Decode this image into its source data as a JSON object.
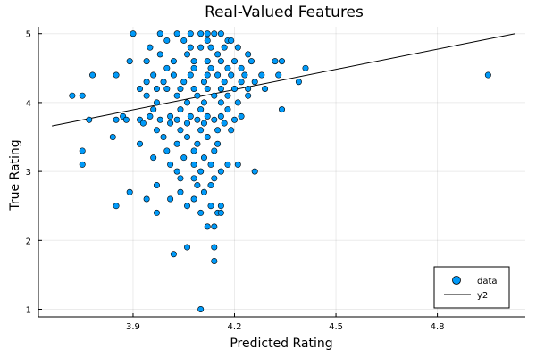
{
  "chart_data": {
    "type": "scatter",
    "title": "Real-Valued Features",
    "xlabel": "Predicted Rating",
    "ylabel": "True Rating",
    "xlim": [
      3.62,
      5.06
    ],
    "ylim": [
      0.89,
      5.1
    ],
    "x_ticks": [
      3.9,
      4.2,
      4.5,
      4.8
    ],
    "x_tick_labels": [
      "3.9",
      "4.2",
      "4.5",
      "4.8"
    ],
    "y_ticks": [
      1,
      2,
      3,
      4,
      5
    ],
    "y_tick_labels": [
      "1",
      "2",
      "3",
      "4",
      "5"
    ],
    "grid": true,
    "legend_position": "bottom-right",
    "colors": {
      "data": "#009AF9",
      "y2": "#000000"
    },
    "series": [
      {
        "name": "data",
        "type": "scatter",
        "points": [
          [
            3.9,
            5.0
          ],
          [
            3.98,
            5.0
          ],
          [
            4.03,
            5.0
          ],
          [
            4.07,
            5.0
          ],
          [
            4.1,
            5.0
          ],
          [
            4.12,
            5.0
          ],
          [
            4.14,
            5.0
          ],
          [
            4.16,
            5.0
          ],
          [
            4.18,
            4.9
          ],
          [
            4.05,
            4.9
          ],
          [
            4.0,
            4.9
          ],
          [
            4.12,
            4.9
          ],
          [
            4.19,
            4.9
          ],
          [
            4.07,
            4.8
          ],
          [
            4.1,
            4.8
          ],
          [
            4.13,
            4.8
          ],
          [
            4.17,
            4.8
          ],
          [
            4.21,
            4.8
          ],
          [
            3.95,
            4.8
          ],
          [
            3.98,
            4.7
          ],
          [
            4.06,
            4.7
          ],
          [
            4.15,
            4.7
          ],
          [
            4.24,
            4.7
          ],
          [
            3.89,
            4.6
          ],
          [
            3.94,
            4.6
          ],
          [
            4.02,
            4.6
          ],
          [
            4.08,
            4.6
          ],
          [
            4.12,
            4.6
          ],
          [
            4.16,
            4.6
          ],
          [
            4.2,
            4.6
          ],
          [
            4.25,
            4.6
          ],
          [
            4.32,
            4.6
          ],
          [
            4.34,
            4.6
          ],
          [
            4.0,
            4.5
          ],
          [
            4.08,
            4.5
          ],
          [
            4.13,
            4.5
          ],
          [
            4.18,
            4.5
          ],
          [
            4.22,
            4.5
          ],
          [
            4.41,
            4.5
          ],
          [
            3.78,
            4.4
          ],
          [
            3.85,
            4.4
          ],
          [
            3.96,
            4.4
          ],
          [
            4.02,
            4.4
          ],
          [
            4.07,
            4.4
          ],
          [
            4.12,
            4.4
          ],
          [
            4.15,
            4.4
          ],
          [
            4.19,
            4.4
          ],
          [
            4.23,
            4.4
          ],
          [
            4.28,
            4.4
          ],
          [
            4.33,
            4.4
          ],
          [
            4.95,
            4.4
          ],
          [
            3.94,
            4.3
          ],
          [
            3.99,
            4.3
          ],
          [
            4.05,
            4.3
          ],
          [
            4.11,
            4.3
          ],
          [
            4.17,
            4.3
          ],
          [
            4.22,
            4.3
          ],
          [
            4.26,
            4.3
          ],
          [
            4.39,
            4.3
          ],
          [
            3.92,
            4.2
          ],
          [
            3.97,
            4.2
          ],
          [
            4.0,
            4.2
          ],
          [
            4.04,
            4.2
          ],
          [
            4.08,
            4.2
          ],
          [
            4.12,
            4.2
          ],
          [
            4.16,
            4.2
          ],
          [
            4.2,
            4.2
          ],
          [
            4.24,
            4.2
          ],
          [
            4.29,
            4.2
          ],
          [
            3.94,
            4.1
          ],
          [
            4.03,
            4.1
          ],
          [
            4.09,
            4.1
          ],
          [
            4.14,
            4.1
          ],
          [
            4.18,
            4.1
          ],
          [
            4.24,
            4.1
          ],
          [
            3.72,
            4.1
          ],
          [
            3.75,
            4.1
          ],
          [
            3.97,
            4.0
          ],
          [
            4.06,
            4.0
          ],
          [
            4.11,
            4.0
          ],
          [
            4.16,
            4.0
          ],
          [
            4.21,
            4.0
          ],
          [
            3.96,
            3.9
          ],
          [
            4.04,
            3.9
          ],
          [
            4.1,
            3.9
          ],
          [
            4.18,
            3.9
          ],
          [
            4.34,
            3.9
          ],
          [
            3.87,
            3.8
          ],
          [
            3.95,
            3.8
          ],
          [
            4.01,
            3.8
          ],
          [
            4.07,
            3.8
          ],
          [
            4.12,
            3.8
          ],
          [
            4.16,
            3.8
          ],
          [
            4.22,
            3.8
          ],
          [
            3.77,
            3.75
          ],
          [
            3.85,
            3.75
          ],
          [
            3.88,
            3.75
          ],
          [
            3.92,
            3.75
          ],
          [
            3.98,
            3.75
          ],
          [
            4.03,
            3.75
          ],
          [
            4.09,
            3.75
          ],
          [
            4.14,
            3.75
          ],
          [
            4.2,
            3.75
          ],
          [
            3.93,
            3.7
          ],
          [
            4.01,
            3.7
          ],
          [
            4.06,
            3.7
          ],
          [
            4.11,
            3.7
          ],
          [
            4.17,
            3.7
          ],
          [
            3.97,
            3.6
          ],
          [
            4.04,
            3.6
          ],
          [
            4.1,
            3.6
          ],
          [
            4.15,
            3.6
          ],
          [
            4.19,
            3.6
          ],
          [
            3.84,
            3.5
          ],
          [
            3.99,
            3.5
          ],
          [
            4.06,
            3.5
          ],
          [
            4.12,
            3.5
          ],
          [
            3.92,
            3.4
          ],
          [
            4.03,
            3.4
          ],
          [
            4.09,
            3.4
          ],
          [
            4.15,
            3.4
          ],
          [
            3.75,
            3.3
          ],
          [
            4.0,
            3.3
          ],
          [
            4.08,
            3.3
          ],
          [
            4.14,
            3.3
          ],
          [
            3.96,
            3.2
          ],
          [
            4.05,
            3.2
          ],
          [
            4.11,
            3.2
          ],
          [
            3.75,
            3.1
          ],
          [
            4.01,
            3.1
          ],
          [
            4.08,
            3.1
          ],
          [
            4.13,
            3.1
          ],
          [
            4.18,
            3.1
          ],
          [
            4.21,
            3.1
          ],
          [
            4.03,
            3.0
          ],
          [
            4.1,
            3.0
          ],
          [
            4.16,
            3.0
          ],
          [
            4.26,
            3.0
          ],
          [
            4.04,
            2.9
          ],
          [
            4.08,
            2.9
          ],
          [
            4.14,
            2.9
          ],
          [
            3.97,
            2.8
          ],
          [
            4.09,
            2.8
          ],
          [
            4.13,
            2.8
          ],
          [
            3.89,
            2.7
          ],
          [
            4.04,
            2.7
          ],
          [
            4.11,
            2.7
          ],
          [
            3.94,
            2.6
          ],
          [
            4.01,
            2.6
          ],
          [
            4.08,
            2.6
          ],
          [
            3.85,
            2.5
          ],
          [
            4.06,
            2.5
          ],
          [
            4.13,
            2.5
          ],
          [
            4.16,
            2.5
          ],
          [
            3.97,
            2.4
          ],
          [
            4.1,
            2.4
          ],
          [
            4.15,
            2.4
          ],
          [
            4.16,
            2.4
          ],
          [
            4.12,
            2.2
          ],
          [
            4.14,
            2.2
          ],
          [
            4.06,
            1.9
          ],
          [
            4.14,
            1.9
          ],
          [
            4.02,
            1.8
          ],
          [
            4.14,
            1.7
          ],
          [
            4.1,
            1.0
          ]
        ]
      },
      {
        "name": "y2",
        "type": "line",
        "points": [
          [
            3.66,
            3.66
          ],
          [
            5.03,
            5.0
          ]
        ]
      }
    ],
    "legend": [
      {
        "label": "data",
        "marker": "circle"
      },
      {
        "label": "y2",
        "marker": "line"
      }
    ]
  }
}
